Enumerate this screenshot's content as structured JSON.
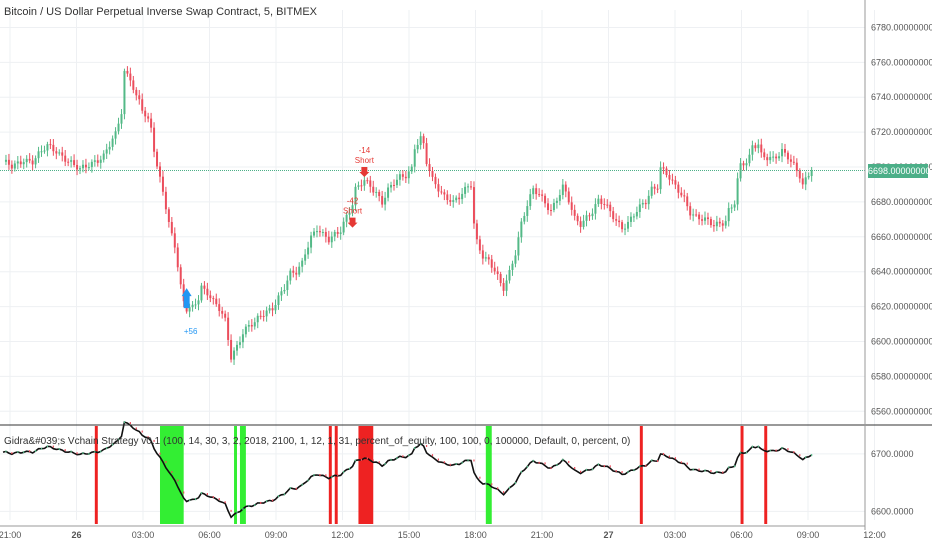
{
  "title": "Bitcoin / US Dollar Perpetual Inverse Swap Contract, 5, BITMEX",
  "indicator_label": "Gidra&#039;s Vchain Strategy v0.1 (100, 14, 30, 3, 2, 2018, 2100, 1, 12, 1, 31, percent_of_equity, 100, 100, 0, 100000, Default, 0, percent, 0)",
  "colors": {
    "up": "#53b987",
    "down": "#eb4d5c",
    "gridline": "#eef0f3",
    "price_line": "#4caf88",
    "green_band": "#33ee33",
    "red_band": "#ee2222",
    "signal_long": "#2196f3",
    "signal_short": "#e53935"
  },
  "current_price": "6698.00000000",
  "chart_data": [
    {
      "type": "candlestick",
      "title": "Bitcoin / US Dollar Perpetual Inverse Swap Contract, 5, BITMEX",
      "xlabel": "",
      "ylabel": "",
      "ylim": [
        6555,
        6790
      ],
      "y_ticks": [
        "6780.00000000",
        "6760.00000000",
        "6740.00000000",
        "6720.00000000",
        "6700.00000000",
        "6680.00000000",
        "6660.00000000",
        "6640.00000000",
        "6620.00000000",
        "6600.00000000",
        "6580.00000000",
        "6560.00000000"
      ],
      "x_ticks": [
        "21:00",
        "26",
        "03:00",
        "06:00",
        "09:00",
        "12:00",
        "15:00",
        "18:00",
        "21:00",
        "27",
        "03:00",
        "06:00",
        "09:00",
        "12:00"
      ],
      "grid": true,
      "close_path": [
        [
          0,
          6702
        ],
        [
          3,
          6700
        ],
        [
          7,
          6705
        ],
        [
          10,
          6703
        ],
        [
          13,
          6708
        ],
        [
          15,
          6712
        ],
        [
          18,
          6710
        ],
        [
          21,
          6705
        ],
        [
          24,
          6700
        ],
        [
          26,
          6698
        ],
        [
          29,
          6702
        ],
        [
          31,
          6704
        ],
        [
          34,
          6706
        ],
        [
          36,
          6712
        ],
        [
          38,
          6718
        ],
        [
          40,
          6732
        ],
        [
          41,
          6755
        ],
        [
          43,
          6752
        ],
        [
          45,
          6740
        ],
        [
          46,
          6738
        ],
        [
          48,
          6728
        ],
        [
          50,
          6722
        ],
        [
          51,
          6710
        ],
        [
          52,
          6700
        ],
        [
          54,
          6688
        ],
        [
          56,
          6668
        ],
        [
          58,
          6655
        ],
        [
          59,
          6642
        ],
        [
          60,
          6630
        ],
        [
          61,
          6622
        ],
        [
          62,
          6618
        ],
        [
          64,
          6620
        ],
        [
          66,
          6626
        ],
        [
          67,
          6632
        ],
        [
          69,
          6628
        ],
        [
          71,
          6622
        ],
        [
          73,
          6618
        ],
        [
          75,
          6612
        ],
        [
          76,
          6602
        ],
        [
          77,
          6592
        ],
        [
          79,
          6598
        ],
        [
          81,
          6605
        ],
        [
          83,
          6608
        ],
        [
          85,
          6610
        ],
        [
          87,
          6615
        ],
        [
          89,
          6618
        ],
        [
          91,
          6620
        ],
        [
          93,
          6625
        ],
        [
          95,
          6630
        ],
        [
          97,
          6638
        ],
        [
          99,
          6640
        ],
        [
          101,
          6646
        ],
        [
          102,
          6652
        ],
        [
          104,
          6660
        ],
        [
          106,
          6664
        ],
        [
          108,
          6660
        ],
        [
          110,
          6658
        ],
        [
          112,
          6662
        ],
        [
          114,
          6665
        ],
        [
          116,
          6672
        ],
        [
          118,
          6678
        ],
        [
          119,
          6686
        ],
        [
          121,
          6690
        ],
        [
          122,
          6692
        ],
        [
          124,
          6690
        ],
        [
          126,
          6686
        ],
        [
          128,
          6680
        ],
        [
          130,
          6686
        ],
        [
          132,
          6690
        ],
        [
          134,
          6694
        ],
        [
          136,
          6696
        ],
        [
          138,
          6700
        ],
        [
          139,
          6712
        ],
        [
          141,
          6716
        ],
        [
          142,
          6712
        ],
        [
          143,
          6702
        ],
        [
          145,
          6692
        ],
        [
          147,
          6688
        ],
        [
          149,
          6684
        ],
        [
          151,
          6682
        ],
        [
          152,
          6680
        ],
        [
          154,
          6682
        ],
        [
          156,
          6686
        ],
        [
          158,
          6690
        ],
        [
          159,
          6668
        ],
        [
          160,
          6658
        ],
        [
          162,
          6650
        ],
        [
          164,
          6646
        ],
        [
          166,
          6640
        ],
        [
          168,
          6632
        ],
        [
          169,
          6630
        ],
        [
          171,
          6640
        ],
        [
          173,
          6652
        ],
        [
          175,
          6668
        ],
        [
          177,
          6678
        ],
        [
          179,
          6686
        ],
        [
          181,
          6684
        ],
        [
          183,
          6680
        ],
        [
          185,
          6676
        ],
        [
          187,
          6682
        ],
        [
          189,
          6688
        ],
        [
          191,
          6680
        ],
        [
          193,
          6670
        ],
        [
          195,
          6668
        ],
        [
          197,
          6672
        ],
        [
          199,
          6675
        ],
        [
          201,
          6680
        ],
        [
          203,
          6678
        ],
        [
          205,
          6674
        ],
        [
          207,
          6670
        ],
        [
          209,
          6666
        ],
        [
          211,
          6668
        ],
        [
          213,
          6672
        ],
        [
          215,
          6676
        ],
        [
          217,
          6680
        ],
        [
          219,
          6688
        ],
        [
          221,
          6690
        ],
        [
          222,
          6700
        ],
        [
          224,
          6696
        ],
        [
          226,
          6690
        ],
        [
          228,
          6686
        ],
        [
          230,
          6682
        ],
        [
          232,
          6675
        ],
        [
          234,
          6672
        ],
        [
          236,
          6670
        ],
        [
          238,
          6668
        ],
        [
          240,
          6666
        ],
        [
          242,
          6668
        ],
        [
          244,
          6670
        ],
        [
          245,
          6676
        ],
        [
          247,
          6680
        ],
        [
          248,
          6692
        ],
        [
          249,
          6700
        ],
        [
          251,
          6702
        ],
        [
          252,
          6705
        ],
        [
          253,
          6712
        ],
        [
          255,
          6714
        ],
        [
          256,
          6708
        ],
        [
          258,
          6706
        ],
        [
          260,
          6704
        ],
        [
          262,
          6706
        ],
        [
          263,
          6708
        ],
        [
          265,
          6706
        ],
        [
          267,
          6702
        ],
        [
          269,
          6696
        ],
        [
          270,
          6690
        ],
        [
          272,
          6695
        ],
        [
          273,
          6698
        ]
      ],
      "current_price": 6698,
      "annotations": [
        {
          "label": "-42",
          "sublabel": "Short",
          "side": "short",
          "x": 118,
          "y": 6663
        },
        {
          "label": "-14",
          "sublabel": "Short",
          "side": "short",
          "x": 122,
          "y": 6692
        },
        {
          "label": "+56",
          "sublabel": "",
          "side": "long",
          "x": 62,
          "y": 6618
        }
      ]
    },
    {
      "type": "line",
      "title": "Gidra&#039;s Vchain Strategy v0.1",
      "ylim": [
        6585,
        6745
      ],
      "y_ticks": [
        "6700.0000",
        "6600.0000"
      ],
      "grid": true,
      "bands": [
        {
          "color": "red",
          "start": 31,
          "end": 32
        },
        {
          "color": "green",
          "start": 53,
          "end": 61
        },
        {
          "color": "green",
          "start": 78,
          "end": 79
        },
        {
          "color": "green",
          "start": 80,
          "end": 82
        },
        {
          "color": "red",
          "start": 110,
          "end": 111
        },
        {
          "color": "red",
          "start": 112,
          "end": 113
        },
        {
          "color": "red",
          "start": 120,
          "end": 125
        },
        {
          "color": "green",
          "start": 163,
          "end": 165
        },
        {
          "color": "red",
          "start": 215,
          "end": 216
        },
        {
          "color": "red",
          "start": 249,
          "end": 250
        },
        {
          "color": "red",
          "start": 257,
          "end": 258
        }
      ]
    }
  ]
}
